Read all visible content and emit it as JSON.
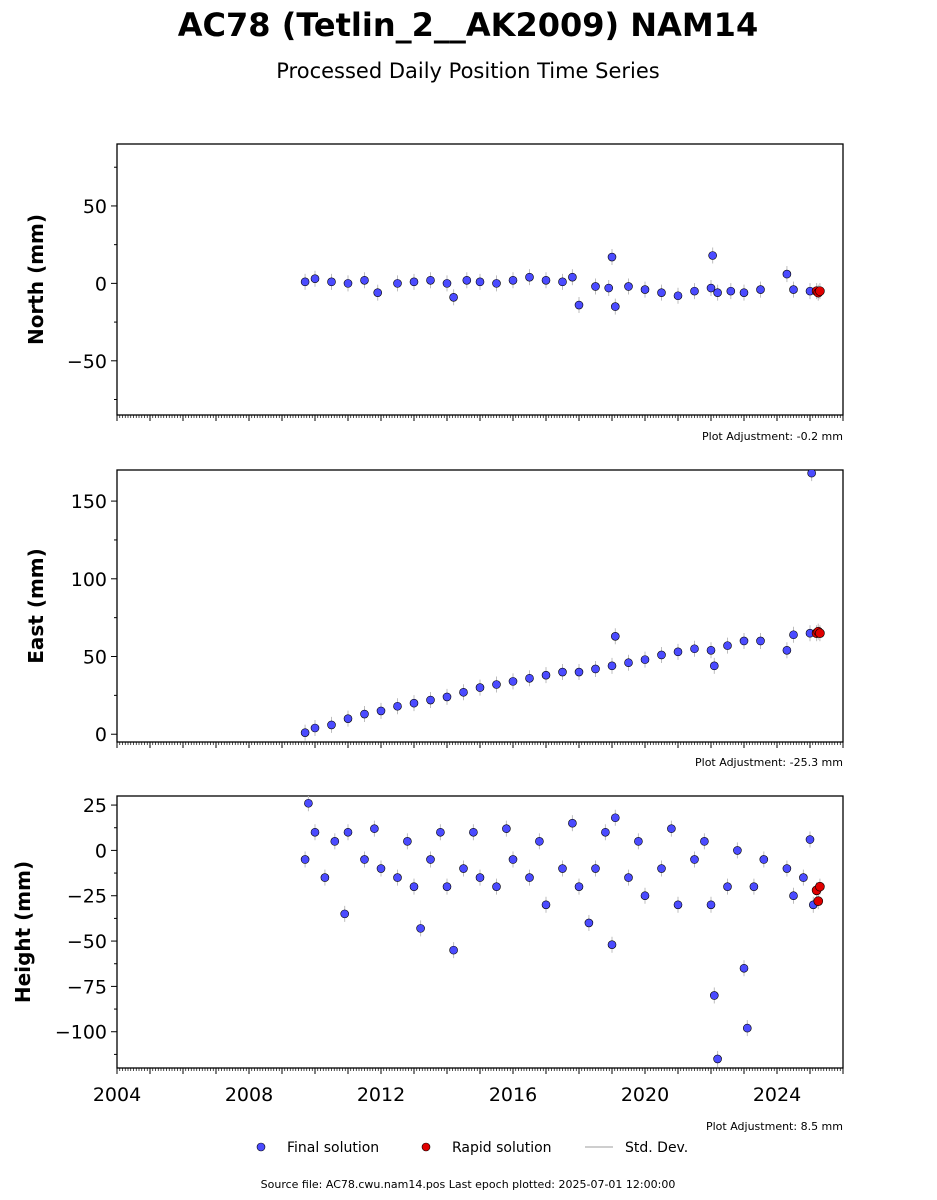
{
  "title": "AC78 (Tetlin_2__AK2009) NAM14",
  "subtitle": "Processed Daily Position Time Series",
  "legend": {
    "final": "Final solution",
    "rapid": "Rapid solution",
    "std": "Std. Dev."
  },
  "source_text": "Source file: AC78.cwu.nam14.pos  Last epoch plotted: 2025-07-01 12:00:00",
  "colors": {
    "final": "#4b4bff",
    "rapid": "#e00000",
    "std": "#bdbdbd",
    "edge": "#000000"
  },
  "chart_data": [
    {
      "type": "scatter",
      "ylabel": "North (mm)",
      "adjustment": "Plot Adjustment: -0.2 mm",
      "xlim": [
        2004,
        2026
      ],
      "ylim": [
        -85,
        90
      ],
      "yticks": [
        -50,
        0,
        50
      ],
      "ytick_labels": [
        "−50",
        "0",
        "50"
      ],
      "series": [
        {
          "name": "Final solution",
          "points": [
            [
              2009.7,
              1
            ],
            [
              2010.0,
              3
            ],
            [
              2010.5,
              1
            ],
            [
              2011.0,
              0
            ],
            [
              2011.5,
              2
            ],
            [
              2011.9,
              -6
            ],
            [
              2012.5,
              0
            ],
            [
              2013.0,
              1
            ],
            [
              2013.5,
              2
            ],
            [
              2014.0,
              0
            ],
            [
              2014.2,
              -9
            ],
            [
              2014.6,
              2
            ],
            [
              2015.0,
              1
            ],
            [
              2015.5,
              0
            ],
            [
              2016.0,
              2
            ],
            [
              2016.5,
              4
            ],
            [
              2017.0,
              2
            ],
            [
              2017.5,
              1
            ],
            [
              2017.8,
              4
            ],
            [
              2018.0,
              -14
            ],
            [
              2018.5,
              -2
            ],
            [
              2018.9,
              -3
            ],
            [
              2019.0,
              17
            ],
            [
              2019.1,
              -15
            ],
            [
              2019.5,
              -2
            ],
            [
              2020.0,
              -4
            ],
            [
              2020.5,
              -6
            ],
            [
              2021.0,
              -8
            ],
            [
              2021.5,
              -5
            ],
            [
              2022.0,
              -3
            ],
            [
              2022.05,
              18
            ],
            [
              2022.2,
              -6
            ],
            [
              2022.6,
              -5
            ],
            [
              2023.0,
              -6
            ],
            [
              2023.5,
              -4
            ],
            [
              2024.3,
              6
            ],
            [
              2024.5,
              -4
            ],
            [
              2025.0,
              -5
            ]
          ]
        },
        {
          "name": "Rapid solution",
          "points": [
            [
              2025.2,
              -5
            ],
            [
              2025.25,
              -6
            ],
            [
              2025.3,
              -5
            ]
          ]
        }
      ]
    },
    {
      "type": "scatter",
      "ylabel": "East (mm)",
      "adjustment": "Plot Adjustment: -25.3 mm",
      "xlim": [
        2004,
        2026
      ],
      "ylim": [
        -5,
        170
      ],
      "yticks": [
        0,
        50,
        100,
        150
      ],
      "ytick_labels": [
        "0",
        "50",
        "100",
        "150"
      ],
      "series": [
        {
          "name": "Final solution",
          "points": [
            [
              2009.7,
              1
            ],
            [
              2010.0,
              4
            ],
            [
              2010.5,
              6
            ],
            [
              2011.0,
              10
            ],
            [
              2011.5,
              13
            ],
            [
              2012.0,
              15
            ],
            [
              2012.5,
              18
            ],
            [
              2013.0,
              20
            ],
            [
              2013.5,
              22
            ],
            [
              2014.0,
              24
            ],
            [
              2014.5,
              27
            ],
            [
              2015.0,
              30
            ],
            [
              2015.5,
              32
            ],
            [
              2016.0,
              34
            ],
            [
              2016.5,
              36
            ],
            [
              2017.0,
              38
            ],
            [
              2017.5,
              40
            ],
            [
              2018.0,
              40
            ],
            [
              2018.5,
              42
            ],
            [
              2019.0,
              44
            ],
            [
              2019.1,
              63
            ],
            [
              2019.5,
              46
            ],
            [
              2020.0,
              48
            ],
            [
              2020.5,
              51
            ],
            [
              2021.0,
              53
            ],
            [
              2021.5,
              55
            ],
            [
              2022.0,
              54
            ],
            [
              2022.1,
              44
            ],
            [
              2022.5,
              57
            ],
            [
              2023.0,
              60
            ],
            [
              2023.5,
              60
            ],
            [
              2024.3,
              54
            ],
            [
              2024.5,
              64
            ],
            [
              2025.0,
              65
            ],
            [
              2025.05,
              168
            ]
          ]
        },
        {
          "name": "Rapid solution",
          "points": [
            [
              2025.2,
              65
            ],
            [
              2025.25,
              66
            ],
            [
              2025.3,
              65
            ]
          ]
        }
      ]
    },
    {
      "type": "scatter",
      "ylabel": "Height (mm)",
      "adjustment": "Plot Adjustment: 8.5 mm",
      "xlim": [
        2004,
        2026
      ],
      "ylim": [
        -120,
        30
      ],
      "yticks": [
        -100,
        -75,
        -50,
        -25,
        0,
        25
      ],
      "ytick_labels": [
        "−100",
        "−75",
        "−50",
        "−25",
        "0",
        "25"
      ],
      "series": [
        {
          "name": "Final solution",
          "points": [
            [
              2009.7,
              -5
            ],
            [
              2009.8,
              26
            ],
            [
              2010.0,
              10
            ],
            [
              2010.3,
              -15
            ],
            [
              2010.6,
              5
            ],
            [
              2010.9,
              -35
            ],
            [
              2011.0,
              10
            ],
            [
              2011.5,
              -5
            ],
            [
              2011.8,
              12
            ],
            [
              2012.0,
              -10
            ],
            [
              2012.5,
              -15
            ],
            [
              2012.8,
              5
            ],
            [
              2013.0,
              -20
            ],
            [
              2013.2,
              -43
            ],
            [
              2013.5,
              -5
            ],
            [
              2013.8,
              10
            ],
            [
              2014.0,
              -20
            ],
            [
              2014.2,
              -55
            ],
            [
              2014.5,
              -10
            ],
            [
              2014.8,
              10
            ],
            [
              2015.0,
              -15
            ],
            [
              2015.5,
              -20
            ],
            [
              2015.8,
              12
            ],
            [
              2016.0,
              -5
            ],
            [
              2016.5,
              -15
            ],
            [
              2016.8,
              5
            ],
            [
              2017.0,
              -30
            ],
            [
              2017.5,
              -10
            ],
            [
              2017.8,
              15
            ],
            [
              2018.0,
              -20
            ],
            [
              2018.3,
              -40
            ],
            [
              2018.5,
              -10
            ],
            [
              2018.8,
              10
            ],
            [
              2019.0,
              -52
            ],
            [
              2019.1,
              18
            ],
            [
              2019.5,
              -15
            ],
            [
              2019.8,
              5
            ],
            [
              2020.0,
              -25
            ],
            [
              2020.5,
              -10
            ],
            [
              2020.8,
              12
            ],
            [
              2021.0,
              -30
            ],
            [
              2021.5,
              -5
            ],
            [
              2021.8,
              5
            ],
            [
              2022.0,
              -30
            ],
            [
              2022.1,
              -80
            ],
            [
              2022.2,
              -115
            ],
            [
              2022.5,
              -20
            ],
            [
              2022.8,
              0
            ],
            [
              2023.0,
              -65
            ],
            [
              2023.1,
              -98
            ],
            [
              2023.3,
              -20
            ],
            [
              2023.6,
              -5
            ],
            [
              2024.3,
              -10
            ],
            [
              2024.5,
              -25
            ],
            [
              2024.8,
              -15
            ],
            [
              2025.0,
              6
            ],
            [
              2025.1,
              -30
            ]
          ]
        },
        {
          "name": "Rapid solution",
          "points": [
            [
              2025.2,
              -22
            ],
            [
              2025.25,
              -28
            ],
            [
              2025.3,
              -20
            ]
          ]
        }
      ]
    }
  ],
  "xticks": [
    2004,
    2008,
    2012,
    2016,
    2020,
    2024
  ],
  "xtick_labels": [
    "2004",
    "2008",
    "2012",
    "2016",
    "2020",
    "2024"
  ]
}
